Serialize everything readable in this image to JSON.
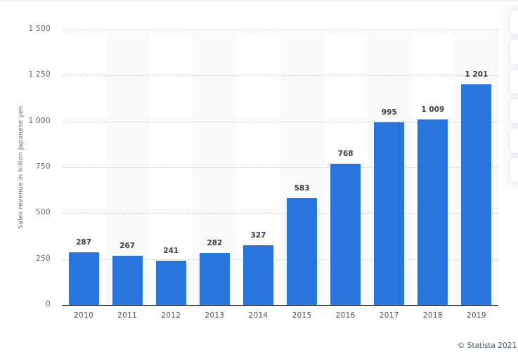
{
  "chart_data": {
    "type": "bar",
    "title": "",
    "xlabel": "",
    "ylabel": "Sales revenue in billion Japanese yen",
    "categories": [
      "2010",
      "2011",
      "2012",
      "2013",
      "2014",
      "2015",
      "2016",
      "2017",
      "2018",
      "2019"
    ],
    "values": [
      287,
      267,
      241,
      282,
      327,
      583,
      768,
      995,
      1009,
      1201
    ],
    "value_labels": [
      "287",
      "267",
      "241",
      "282",
      "327",
      "583",
      "768",
      "995",
      "1 009",
      "1 201"
    ],
    "ylim": [
      0,
      1500
    ],
    "yticks": [
      0,
      250,
      500,
      750,
      1000,
      1250,
      1500
    ],
    "ytick_labels": [
      "0",
      "250",
      "500",
      "750",
      "1 000",
      "1 250",
      "1 500"
    ],
    "grid": true,
    "legend": null,
    "bar_color": "#2876dd",
    "alternating_band_color": "#fafafa"
  },
  "footer": {
    "copyright": "© Statista 2021"
  },
  "side_toolbar": {
    "button_count": 6
  }
}
